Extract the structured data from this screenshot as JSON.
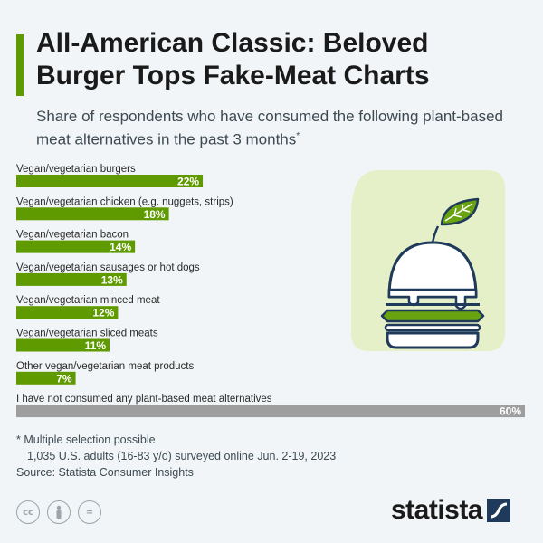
{
  "header": {
    "title": "All-American Classic: Beloved Burger Tops Fake-Meat Charts",
    "subtitle": "Share of respondents who have consumed the following plant-based meat alternatives in the past 3 months",
    "subtitle_marker": "*"
  },
  "chart_data": {
    "type": "bar",
    "orientation": "horizontal",
    "categories": [
      "Vegan/vegetarian burgers",
      "Vegan/vegetarian chicken (e.g. nuggets, strips)",
      "Vegan/vegetarian bacon",
      "Vegan/vegetarian sausages or hot dogs",
      "Vegan/vegetarian minced meat",
      "Vegan/vegetarian sliced meats",
      "Other vegan/vegetarian meat products",
      "I have not consumed any plant-based meat alternatives"
    ],
    "values": [
      22,
      18,
      14,
      13,
      12,
      11,
      7,
      60
    ],
    "value_labels": [
      "22%",
      "18%",
      "14%",
      "13%",
      "12%",
      "11%",
      "7%",
      "60%"
    ],
    "unit": "%",
    "xlim": [
      0,
      60
    ],
    "bar_colors": [
      "#5f9b00",
      "#5f9b00",
      "#5f9b00",
      "#5f9b00",
      "#5f9b00",
      "#5f9b00",
      "#5f9b00",
      "#9e9e9e"
    ],
    "grid": false,
    "legend": "none"
  },
  "notes": {
    "line1": "* Multiple selection possible",
    "line2": "1,035 U.S. adults (16-83 y/o) surveyed online Jun. 2-19, 2023",
    "line3": "Source: Statista Consumer Insights"
  },
  "footer": {
    "icons": [
      "creative-commons-icon",
      "attribution-icon",
      "no-derivatives-icon"
    ],
    "cc_glyph": "cc",
    "nd_glyph": "=",
    "brand": "statista"
  },
  "colors": {
    "accent": "#5f9b00",
    "bar_primary": "#5f9b00",
    "bar_other": "#9e9e9e",
    "illustration_bg": "#e6f0c8",
    "illustration_stroke": "#1f3a5a",
    "illustration_green": "#6aa310"
  }
}
